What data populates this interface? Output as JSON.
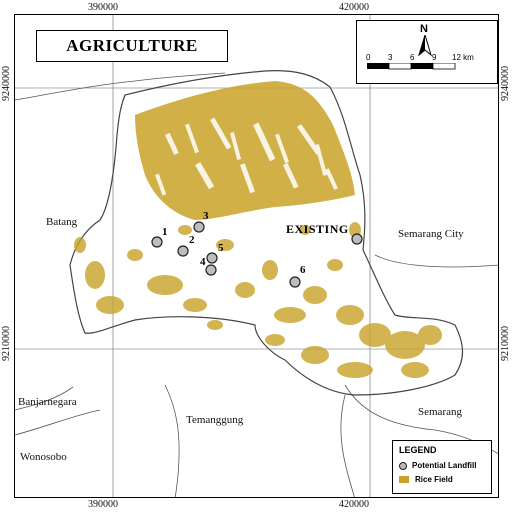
{
  "title": "AGRICULTURE",
  "north_label": "N",
  "scale": {
    "ticks": [
      "0",
      "3",
      "6",
      "9",
      "12 km"
    ]
  },
  "coordinates": {
    "top": [
      "390000",
      "420000"
    ],
    "bottom": [
      "390000",
      "420000"
    ],
    "left": [
      "9240000",
      "9210000"
    ],
    "right": [
      "9240000",
      "9210000"
    ]
  },
  "places": {
    "batang": "Batang",
    "semarang_city": "Semarang City",
    "banjarnegara": "Banjarnegara",
    "temanggung": "Temanggung",
    "semarang": "Semarang",
    "wonosobo": "Wonosobo"
  },
  "existing_label": "EXISTING",
  "sites": [
    "1",
    "2",
    "3",
    "4",
    "5",
    "6"
  ],
  "legend": {
    "title": "LEGEND",
    "items": [
      "Potential Landfill",
      "Rice Field"
    ]
  },
  "colors": {
    "rice_field": "#c8a227",
    "landfill_fill": "#bdbdbd",
    "boundary": "#444444"
  }
}
